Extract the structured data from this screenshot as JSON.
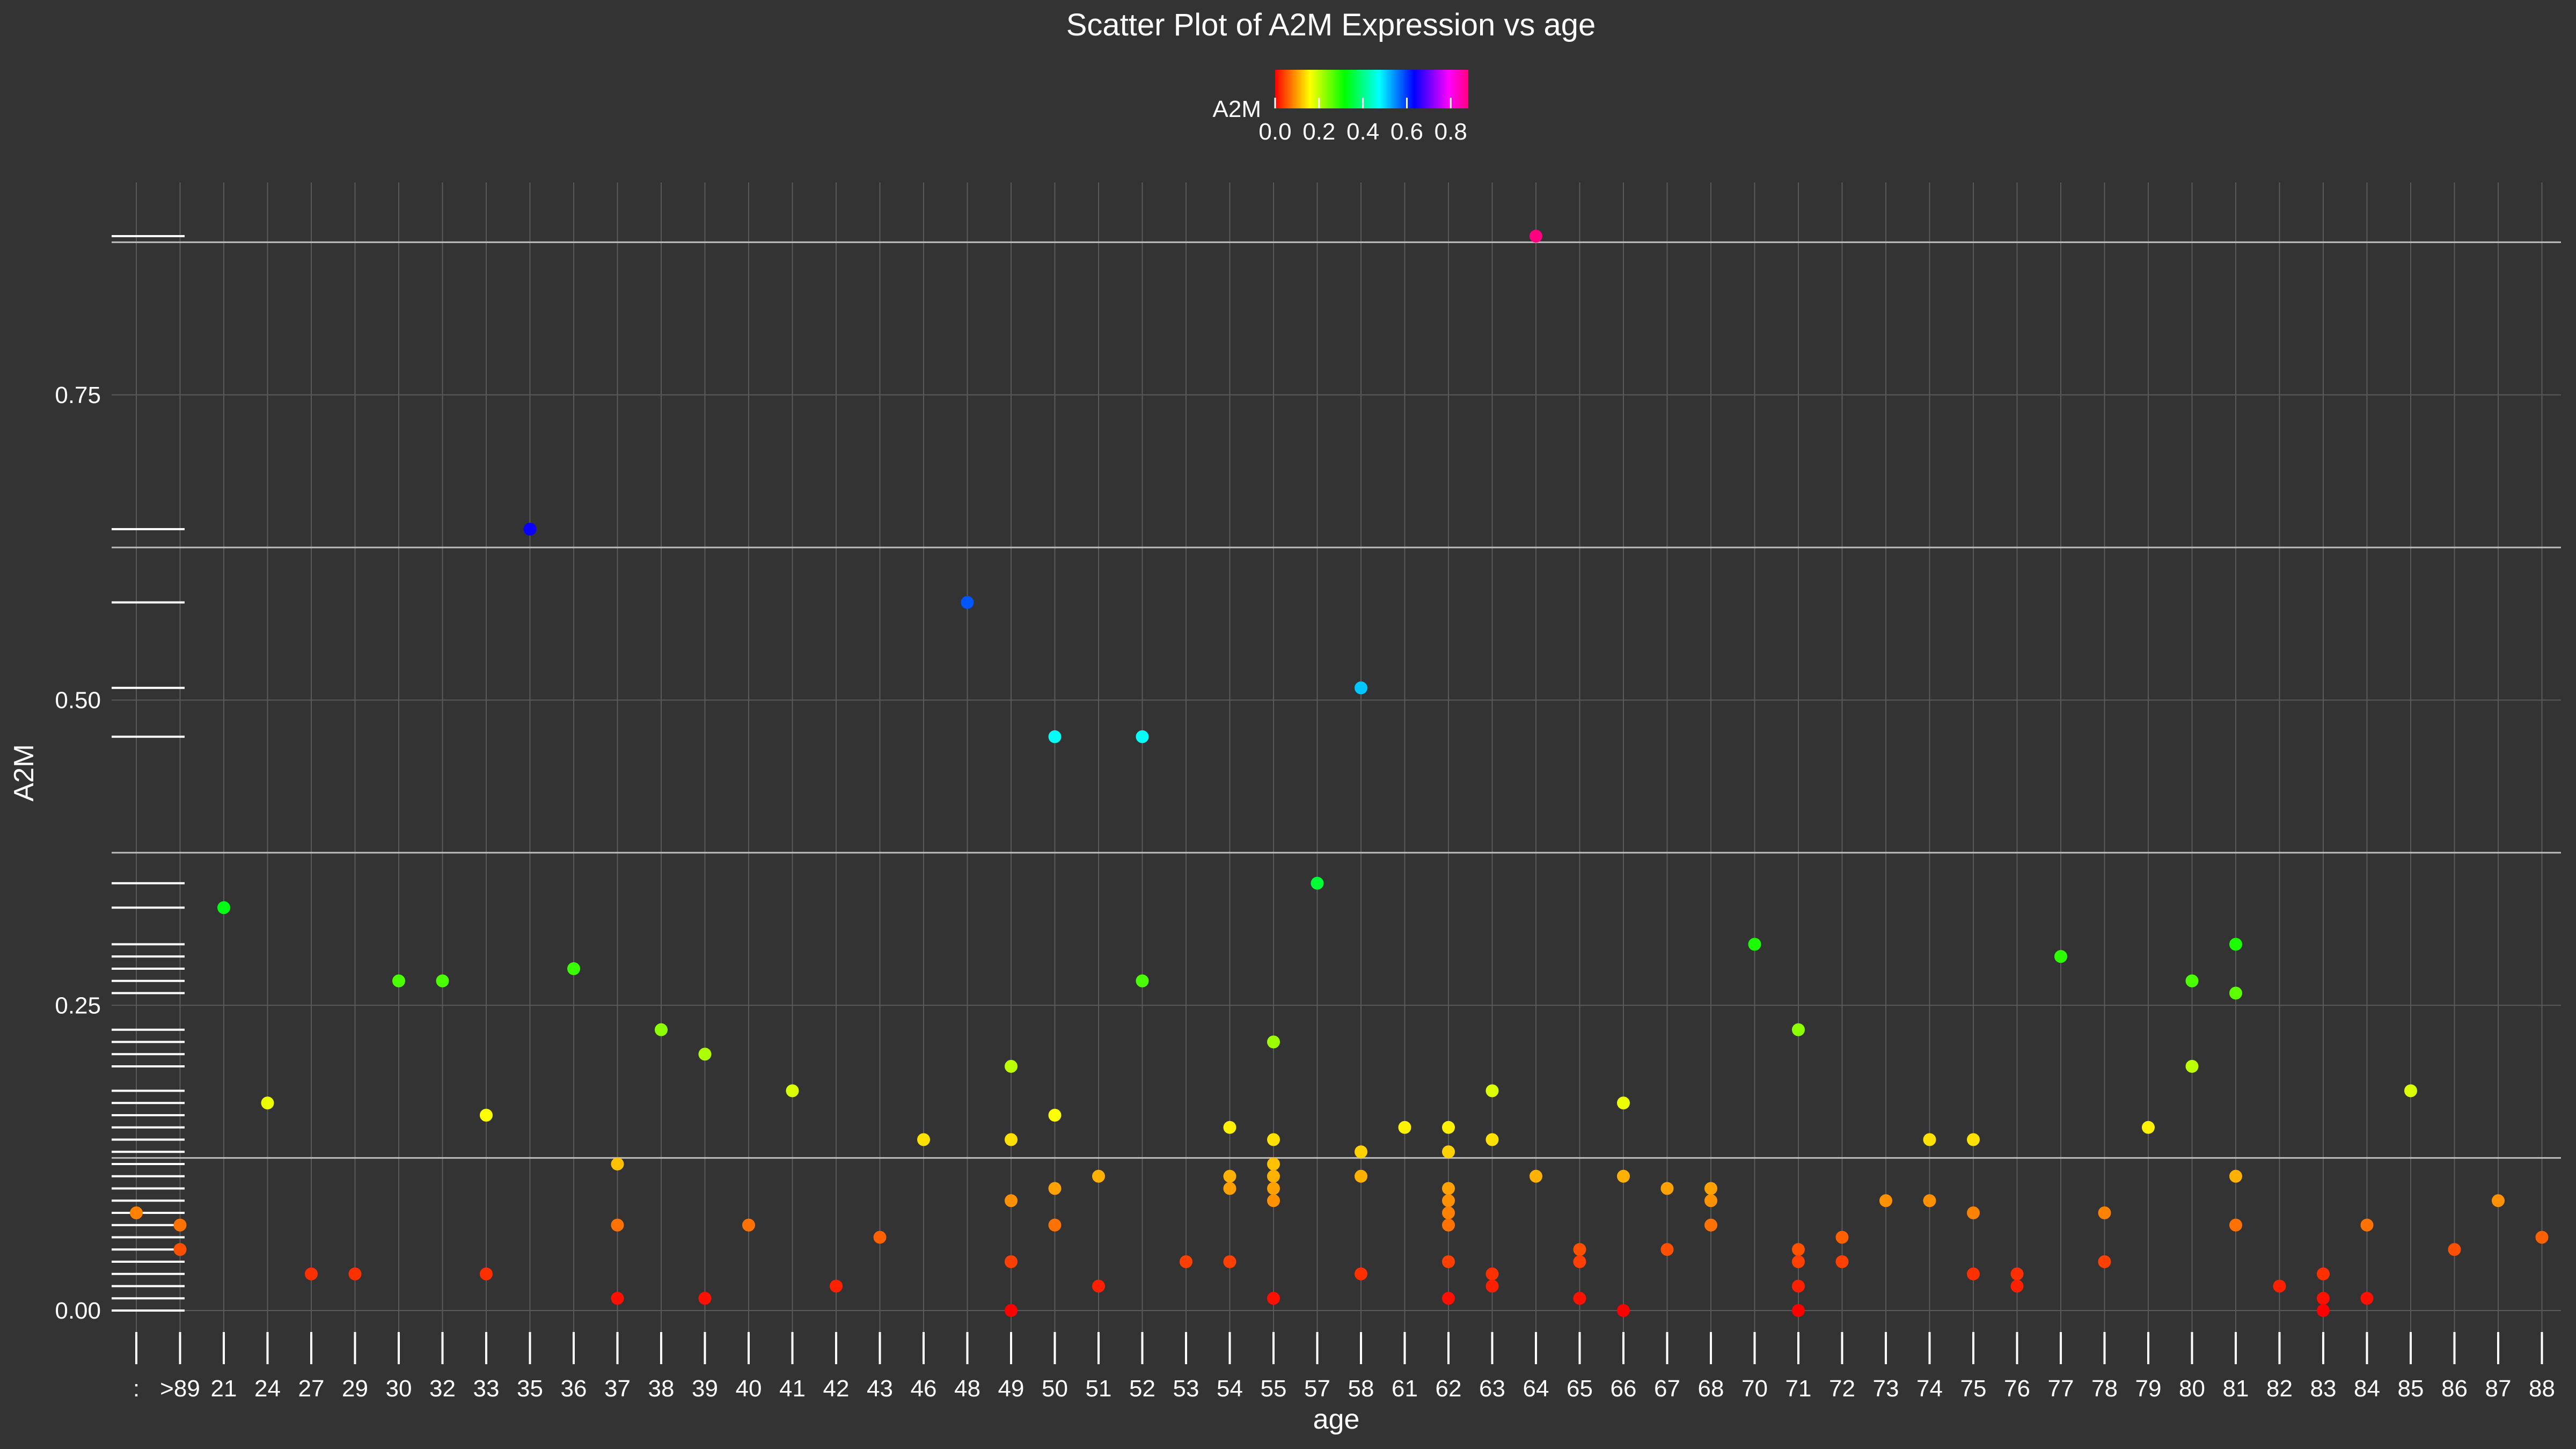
{
  "chart_data": {
    "type": "scatter",
    "title": "Scatter Plot of A2M Expression vs age",
    "xlabel": "age",
    "ylabel": "A2M",
    "ylim": [
      -0.02,
      0.92
    ],
    "yticks": [
      0.0,
      0.25,
      0.5,
      0.75
    ],
    "ytick_labels": [
      "0.00",
      "0.25",
      "0.50",
      "0.75"
    ],
    "hlines": [
      0.125,
      0.375,
      0.625,
      0.875
    ],
    "categories": [
      ":",
      ">89",
      "21",
      "24",
      "27",
      "29",
      "30",
      "32",
      "33",
      "35",
      "36",
      "37",
      "38",
      "39",
      "40",
      "41",
      "42",
      "43",
      "46",
      "48",
      "49",
      "50",
      "51",
      "52",
      "53",
      "54",
      "55",
      "57",
      "58",
      "61",
      "62",
      "63",
      "64",
      "65",
      "66",
      "67",
      "68",
      "70",
      "71",
      "72",
      "73",
      "74",
      "75",
      "76",
      "77",
      "78",
      "79",
      "80",
      "81",
      "82",
      "83",
      "84",
      "85",
      "86",
      "87",
      "88"
    ],
    "legend": {
      "title": "A2M",
      "position": "top-center",
      "colormap": "rainbow (red-yellow-green-cyan-blue-magenta)",
      "range": [
        0.0,
        0.88
      ],
      "tick_values": [
        0.0,
        0.2,
        0.4,
        0.6,
        0.8
      ],
      "tick_labels": [
        "0.0",
        "0.2",
        "0.4",
        "0.6",
        "0.8"
      ]
    },
    "grid": true,
    "rug": "left",
    "points": [
      {
        "x": ":",
        "y": 0.08
      },
      {
        "x": ">89",
        "y": 0.07
      },
      {
        "x": ">89",
        "y": 0.05
      },
      {
        "x": "21",
        "y": 0.33
      },
      {
        "x": "24",
        "y": 0.17
      },
      {
        "x": "27",
        "y": 0.03
      },
      {
        "x": "29",
        "y": 0.03
      },
      {
        "x": "30",
        "y": 0.27
      },
      {
        "x": "32",
        "y": 0.27
      },
      {
        "x": "33",
        "y": 0.16
      },
      {
        "x": "33",
        "y": 0.03
      },
      {
        "x": "35",
        "y": 0.64
      },
      {
        "x": "36",
        "y": 0.28
      },
      {
        "x": "37",
        "y": 0.12
      },
      {
        "x": "37",
        "y": 0.07
      },
      {
        "x": "37",
        "y": 0.01
      },
      {
        "x": "38",
        "y": 0.23
      },
      {
        "x": "39",
        "y": 0.21
      },
      {
        "x": "39",
        "y": 0.01
      },
      {
        "x": "40",
        "y": 0.07
      },
      {
        "x": "41",
        "y": 0.18
      },
      {
        "x": "42",
        "y": 0.02
      },
      {
        "x": "43",
        "y": 0.06
      },
      {
        "x": "46",
        "y": 0.14
      },
      {
        "x": "48",
        "y": 0.58
      },
      {
        "x": "49",
        "y": 0.2
      },
      {
        "x": "49",
        "y": 0.14
      },
      {
        "x": "49",
        "y": 0.09
      },
      {
        "x": "49",
        "y": 0.04
      },
      {
        "x": "49",
        "y": 0.0
      },
      {
        "x": "50",
        "y": 0.47
      },
      {
        "x": "50",
        "y": 0.16
      },
      {
        "x": "50",
        "y": 0.1
      },
      {
        "x": "50",
        "y": 0.07
      },
      {
        "x": "51",
        "y": 0.11
      },
      {
        "x": "51",
        "y": 0.02
      },
      {
        "x": "52",
        "y": 0.47
      },
      {
        "x": "52",
        "y": 0.27
      },
      {
        "x": "53",
        "y": 0.04
      },
      {
        "x": "54",
        "y": 0.15
      },
      {
        "x": "54",
        "y": 0.11
      },
      {
        "x": "54",
        "y": 0.1
      },
      {
        "x": "54",
        "y": 0.04
      },
      {
        "x": "55",
        "y": 0.22
      },
      {
        "x": "55",
        "y": 0.14
      },
      {
        "x": "55",
        "y": 0.12
      },
      {
        "x": "55",
        "y": 0.11
      },
      {
        "x": "55",
        "y": 0.1
      },
      {
        "x": "55",
        "y": 0.09
      },
      {
        "x": "55",
        "y": 0.01
      },
      {
        "x": "57",
        "y": 0.35
      },
      {
        "x": "58",
        "y": 0.51
      },
      {
        "x": "58",
        "y": 0.13
      },
      {
        "x": "58",
        "y": 0.11
      },
      {
        "x": "58",
        "y": 0.03
      },
      {
        "x": "61",
        "y": 0.15
      },
      {
        "x": "62",
        "y": 0.15
      },
      {
        "x": "62",
        "y": 0.13
      },
      {
        "x": "62",
        "y": 0.1
      },
      {
        "x": "62",
        "y": 0.09
      },
      {
        "x": "62",
        "y": 0.08
      },
      {
        "x": "62",
        "y": 0.07
      },
      {
        "x": "62",
        "y": 0.04
      },
      {
        "x": "62",
        "y": 0.01
      },
      {
        "x": "63",
        "y": 0.18
      },
      {
        "x": "63",
        "y": 0.14
      },
      {
        "x": "63",
        "y": 0.03
      },
      {
        "x": "63",
        "y": 0.02
      },
      {
        "x": "64",
        "y": 0.88
      },
      {
        "x": "64",
        "y": 0.11
      },
      {
        "x": "65",
        "y": 0.05
      },
      {
        "x": "65",
        "y": 0.04
      },
      {
        "x": "65",
        "y": 0.01
      },
      {
        "x": "66",
        "y": 0.17
      },
      {
        "x": "66",
        "y": 0.11
      },
      {
        "x": "66",
        "y": 0.0
      },
      {
        "x": "67",
        "y": 0.1
      },
      {
        "x": "67",
        "y": 0.05
      },
      {
        "x": "68",
        "y": 0.1
      },
      {
        "x": "68",
        "y": 0.09
      },
      {
        "x": "68",
        "y": 0.07
      },
      {
        "x": "70",
        "y": 0.3
      },
      {
        "x": "71",
        "y": 0.23
      },
      {
        "x": "71",
        "y": 0.05
      },
      {
        "x": "71",
        "y": 0.04
      },
      {
        "x": "71",
        "y": 0.02
      },
      {
        "x": "71",
        "y": 0.0
      },
      {
        "x": "72",
        "y": 0.06
      },
      {
        "x": "72",
        "y": 0.04
      },
      {
        "x": "73",
        "y": 0.09
      },
      {
        "x": "74",
        "y": 0.14
      },
      {
        "x": "74",
        "y": 0.09
      },
      {
        "x": "75",
        "y": 0.14
      },
      {
        "x": "75",
        "y": 0.08
      },
      {
        "x": "75",
        "y": 0.03
      },
      {
        "x": "76",
        "y": 0.03
      },
      {
        "x": "76",
        "y": 0.02
      },
      {
        "x": "77",
        "y": 0.29
      },
      {
        "x": "78",
        "y": 0.08
      },
      {
        "x": "78",
        "y": 0.04
      },
      {
        "x": "79",
        "y": 0.15
      },
      {
        "x": "80",
        "y": 0.27
      },
      {
        "x": "80",
        "y": 0.2
      },
      {
        "x": "81",
        "y": 0.3
      },
      {
        "x": "81",
        "y": 0.26
      },
      {
        "x": "81",
        "y": 0.11
      },
      {
        "x": "81",
        "y": 0.07
      },
      {
        "x": "82",
        "y": 0.02
      },
      {
        "x": "83",
        "y": 0.03
      },
      {
        "x": "83",
        "y": 0.01
      },
      {
        "x": "83",
        "y": 0.0
      },
      {
        "x": "84",
        "y": 0.07
      },
      {
        "x": "84",
        "y": 0.01
      },
      {
        "x": "85",
        "y": 0.18
      },
      {
        "x": "86",
        "y": 0.05
      },
      {
        "x": "87",
        "y": 0.09
      },
      {
        "x": "88",
        "y": 0.06
      }
    ]
  }
}
